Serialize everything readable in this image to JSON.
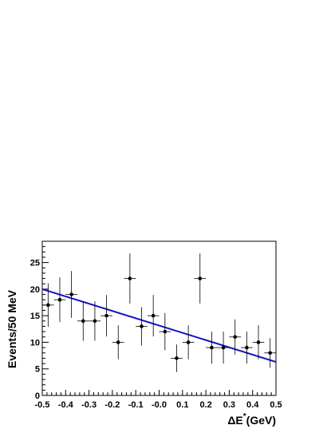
{
  "chart_data": {
    "type": "scatter",
    "xlabel": "ΔE",
    "xlabel_superscript": "*",
    "xlabel_unit": "(GeV)",
    "ylabel": "Events/50 MeV",
    "xlim": [
      -0.5,
      0.5
    ],
    "ylim": [
      0,
      29
    ],
    "x_ticks": [
      -0.5,
      -0.4,
      -0.3,
      -0.2,
      -0.1,
      0.0,
      0.1,
      0.2,
      0.3,
      0.4,
      0.5
    ],
    "x_tick_labels": [
      "-0.5",
      "-0.4",
      "-0.3",
      "-0.2",
      "-0.1",
      "-0.0",
      "0.1",
      "0.2",
      "0.3",
      "0.4",
      "0.5"
    ],
    "y_ticks": [
      0,
      5,
      10,
      15,
      20,
      25
    ],
    "y_tick_labels": [
      "0",
      "5",
      "10",
      "15",
      "20",
      "25"
    ],
    "grid": false,
    "x_bin_half_width": 0.025,
    "points": [
      {
        "x": -0.475,
        "y": 17,
        "err": 4.1
      },
      {
        "x": -0.425,
        "y": 18,
        "err": 4.2
      },
      {
        "x": -0.375,
        "y": 19,
        "err": 4.4
      },
      {
        "x": -0.325,
        "y": 14,
        "err": 3.7
      },
      {
        "x": -0.275,
        "y": 14,
        "err": 3.7
      },
      {
        "x": -0.225,
        "y": 15,
        "err": 3.9
      },
      {
        "x": -0.175,
        "y": 10,
        "err": 3.2
      },
      {
        "x": -0.125,
        "y": 22,
        "err": 4.7
      },
      {
        "x": -0.075,
        "y": 13,
        "err": 3.6
      },
      {
        "x": -0.025,
        "y": 15,
        "err": 3.9
      },
      {
        "x": 0.025,
        "y": 12,
        "err": 3.5
      },
      {
        "x": 0.075,
        "y": 7,
        "err": 2.6
      },
      {
        "x": 0.125,
        "y": 10,
        "err": 3.2
      },
      {
        "x": 0.175,
        "y": 22,
        "err": 4.7
      },
      {
        "x": 0.225,
        "y": 9,
        "err": 3.0
      },
      {
        "x": 0.275,
        "y": 9,
        "err": 3.0
      },
      {
        "x": 0.325,
        "y": 11,
        "err": 3.3
      },
      {
        "x": 0.375,
        "y": 9,
        "err": 3.0
      },
      {
        "x": 0.425,
        "y": 10,
        "err": 3.2
      },
      {
        "x": 0.475,
        "y": 8,
        "err": 2.8
      }
    ],
    "fit_line": {
      "x": [
        -0.5,
        0.5
      ],
      "y": [
        20.0,
        6.3
      ],
      "color": "#1010c8"
    }
  }
}
